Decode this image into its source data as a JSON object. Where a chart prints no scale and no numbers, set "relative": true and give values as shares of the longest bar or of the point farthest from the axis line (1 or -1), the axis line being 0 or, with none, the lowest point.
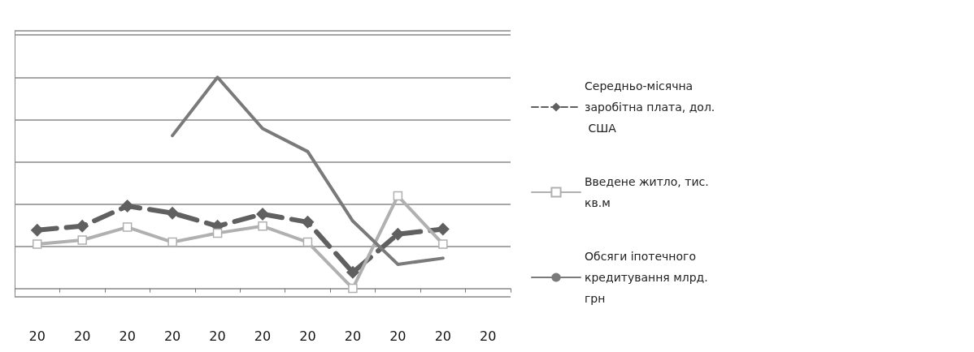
{
  "chart_data": {
    "type": "line",
    "relative": true,
    "grid": "y",
    "legend": "right",
    "categories": [
      "20",
      "20",
      "20",
      "20",
      "20",
      "20",
      "20",
      "20",
      "20",
      "20",
      "20"
    ],
    "series": [
      {
        "name": "Середньо-місячна заробітна плата, дол. США",
        "color": "#606060",
        "marker": "diamond",
        "line_style": "dashed",
        "values": [
          0.276,
          0.295,
          0.39,
          0.357,
          0.295,
          0.352,
          0.314,
          0.076,
          0.257,
          0.281,
          null
        ]
      },
      {
        "name": "Введене житло, тис. кв.м",
        "color": "#b0b0b0",
        "marker": "square",
        "line_style": "solid",
        "values": [
          0.21,
          0.229,
          0.29,
          0.219,
          0.262,
          0.295,
          0.219,
          0,
          0.438,
          0.21,
          null
        ]
      },
      {
        "name": "Обсяги іпотечного кредитування млрд. грн",
        "color": "#7a7a7a",
        "marker": "none",
        "line_style": "solid",
        "values": [
          null,
          null,
          null,
          0.724,
          1,
          0.757,
          0.648,
          0.319,
          0.114,
          0.143,
          null
        ]
      }
    ]
  }
}
